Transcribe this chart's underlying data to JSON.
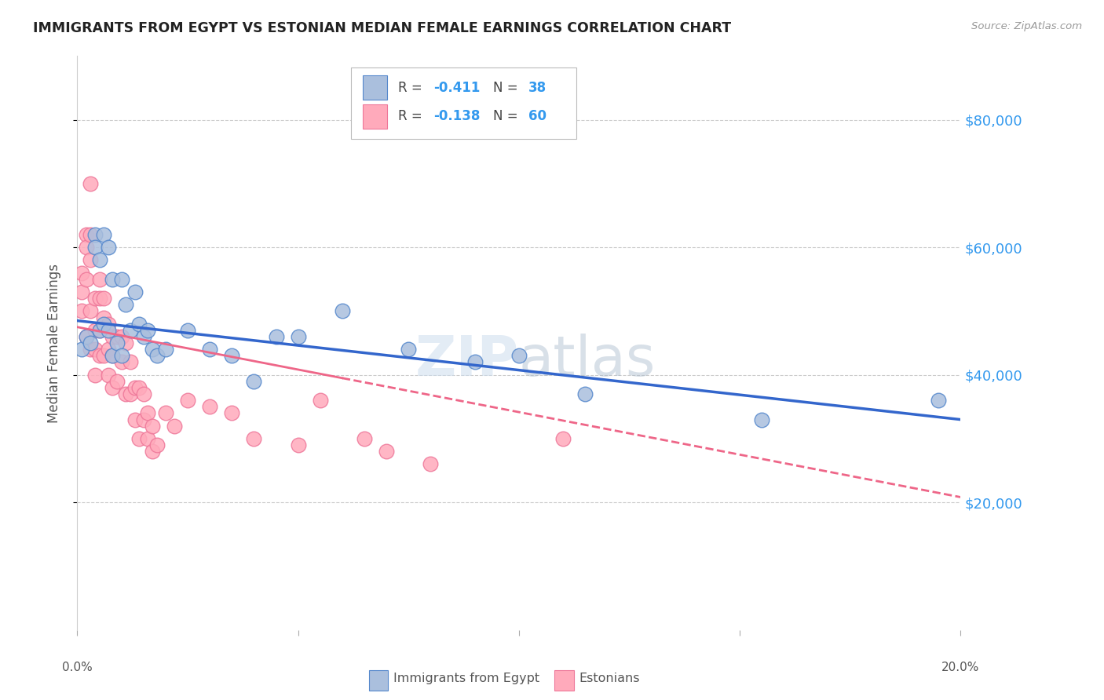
{
  "title": "IMMIGRANTS FROM EGYPT VS ESTONIAN MEDIAN FEMALE EARNINGS CORRELATION CHART",
  "source": "Source: ZipAtlas.com",
  "ylabel": "Median Female Earnings",
  "watermark": "ZIPatlas",
  "legend_blue_r": "R = ",
  "legend_blue_rv": "-0.411",
  "legend_blue_n": "N = ",
  "legend_blue_nv": "38",
  "legend_pink_r": "R = ",
  "legend_pink_rv": "-0.138",
  "legend_pink_n": "N = ",
  "legend_pink_nv": "60",
  "legend_label_blue": "Immigrants from Egypt",
  "legend_label_pink": "Estonians",
  "y_ticks": [
    20000,
    40000,
    60000,
    80000
  ],
  "y_tick_labels": [
    "$20,000",
    "$40,000",
    "$60,000",
    "$80,000"
  ],
  "ylim": [
    0,
    90000
  ],
  "xlim": [
    0.0,
    0.2
  ],
  "blue_fill": "#AABFDD",
  "blue_edge": "#5588CC",
  "pink_fill": "#FFAABB",
  "pink_edge": "#EE7799",
  "trend_blue_color": "#3366CC",
  "trend_pink_solid": "#EE6688",
  "trend_pink_dash": "#EE6688",
  "background_color": "#FFFFFF",
  "grid_color": "#CCCCCC",
  "title_color": "#222222",
  "right_tick_color": "#3399EE",
  "blue_scatter_x": [
    0.001,
    0.002,
    0.003,
    0.004,
    0.004,
    0.005,
    0.005,
    0.006,
    0.006,
    0.007,
    0.007,
    0.008,
    0.008,
    0.009,
    0.01,
    0.01,
    0.011,
    0.012,
    0.013,
    0.014,
    0.015,
    0.016,
    0.017,
    0.018,
    0.02,
    0.025,
    0.03,
    0.035,
    0.04,
    0.045,
    0.05,
    0.06,
    0.075,
    0.09,
    0.1,
    0.115,
    0.155,
    0.195
  ],
  "blue_scatter_y": [
    44000,
    46000,
    45000,
    62000,
    60000,
    58000,
    47000,
    62000,
    48000,
    60000,
    47000,
    55000,
    43000,
    45000,
    55000,
    43000,
    51000,
    47000,
    53000,
    48000,
    46000,
    47000,
    44000,
    43000,
    44000,
    47000,
    44000,
    43000,
    39000,
    46000,
    46000,
    50000,
    44000,
    42000,
    43000,
    37000,
    33000,
    36000
  ],
  "pink_scatter_x": [
    0.001,
    0.001,
    0.001,
    0.002,
    0.002,
    0.002,
    0.002,
    0.003,
    0.003,
    0.003,
    0.003,
    0.003,
    0.004,
    0.004,
    0.004,
    0.004,
    0.005,
    0.005,
    0.005,
    0.005,
    0.006,
    0.006,
    0.006,
    0.007,
    0.007,
    0.007,
    0.008,
    0.008,
    0.008,
    0.009,
    0.009,
    0.01,
    0.01,
    0.011,
    0.011,
    0.012,
    0.012,
    0.013,
    0.013,
    0.014,
    0.014,
    0.015,
    0.015,
    0.016,
    0.016,
    0.017,
    0.017,
    0.018,
    0.02,
    0.022,
    0.025,
    0.03,
    0.035,
    0.04,
    0.05,
    0.055,
    0.065,
    0.07,
    0.08,
    0.11
  ],
  "pink_scatter_y": [
    56000,
    53000,
    50000,
    62000,
    60000,
    55000,
    46000,
    70000,
    62000,
    58000,
    50000,
    44000,
    52000,
    47000,
    44000,
    40000,
    55000,
    52000,
    47000,
    43000,
    52000,
    49000,
    43000,
    48000,
    44000,
    40000,
    46000,
    43000,
    38000,
    46000,
    39000,
    46000,
    42000,
    45000,
    37000,
    42000,
    37000,
    38000,
    33000,
    38000,
    30000,
    37000,
    33000,
    34000,
    30000,
    32000,
    28000,
    29000,
    34000,
    32000,
    36000,
    35000,
    34000,
    30000,
    29000,
    36000,
    30000,
    28000,
    26000,
    30000
  ],
  "trend_blue_x0": 0.0,
  "trend_blue_x1": 0.2,
  "trend_blue_y0": 48500,
  "trend_blue_y1": 33000,
  "trend_pink_solid_x0": 0.0,
  "trend_pink_solid_x1": 0.06,
  "trend_pink_y0": 47500,
  "trend_pink_y1": 39500,
  "trend_pink_dash_x0": 0.06,
  "trend_pink_dash_x1": 0.2
}
